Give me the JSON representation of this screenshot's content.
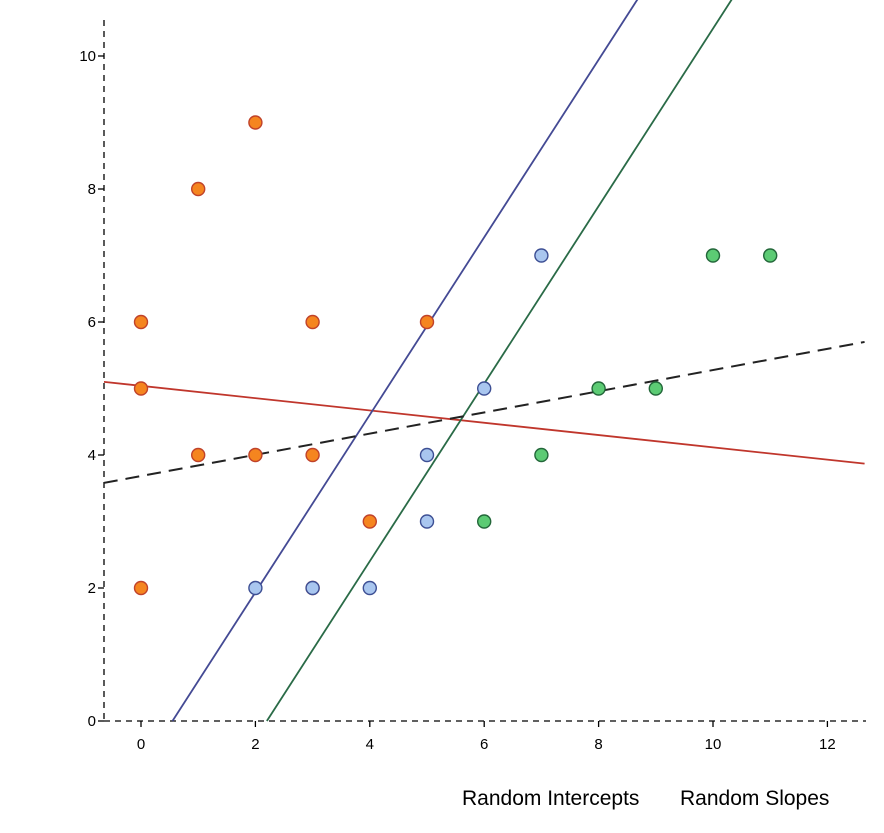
{
  "chart_data": {
    "type": "scatter",
    "title": "",
    "xlabel": "",
    "ylabel": "",
    "xlim": [
      -0.65,
      12.65
    ],
    "ylim": [
      0,
      10.5
    ],
    "x_ticks": [
      0,
      2,
      4,
      6,
      8,
      10,
      12
    ],
    "y_ticks": [
      0,
      2,
      4,
      6,
      8,
      10
    ],
    "grid": false,
    "groups": [
      {
        "color": "#f5851f",
        "stroke": "#c0422a",
        "points": [
          {
            "x": 0,
            "y": 2
          },
          {
            "x": 0,
            "y": 5
          },
          {
            "x": 0,
            "y": 6
          },
          {
            "x": 1,
            "y": 4
          },
          {
            "x": 1,
            "y": 8
          },
          {
            "x": 2,
            "y": 4
          },
          {
            "x": 2,
            "y": 9
          },
          {
            "x": 3,
            "y": 2
          },
          {
            "x": 3,
            "y": 4
          },
          {
            "x": 3,
            "y": 6
          },
          {
            "x": 4,
            "y": 3
          },
          {
            "x": 5,
            "y": 6
          }
        ]
      },
      {
        "color": "#a9c6ef",
        "stroke": "#3d4f94",
        "points": [
          {
            "x": 2,
            "y": 2
          },
          {
            "x": 3,
            "y": 2
          },
          {
            "x": 4,
            "y": 2
          },
          {
            "x": 5,
            "y": 3
          },
          {
            "x": 5,
            "y": 4
          },
          {
            "x": 6,
            "y": 5
          },
          {
            "x": 7,
            "y": 7
          }
        ]
      },
      {
        "color": "#5ccb74",
        "stroke": "#23673a",
        "points": [
          {
            "x": 6,
            "y": 3
          },
          {
            "x": 7,
            "y": 4
          },
          {
            "x": 8,
            "y": 5
          },
          {
            "x": 9,
            "y": 5
          },
          {
            "x": 10,
            "y": 7
          },
          {
            "x": 11,
            "y": 7
          }
        ]
      }
    ],
    "lines": [
      {
        "color": "#c0362c",
        "dashed": false,
        "x1": -0.65,
        "y1": 5.1,
        "x2": 12.65,
        "y2": 3.87
      },
      {
        "color": "#444a94",
        "dashed": false,
        "x1": 0.55,
        "y1": 0,
        "x2": 12.65,
        "y2": 16.15
      },
      {
        "color": "#2a6b47",
        "dashed": false,
        "x1": 2.2,
        "y1": 0,
        "x2": 12.65,
        "y2": 13.95
      },
      {
        "color": "#222222",
        "dashed": true,
        "x1": -0.65,
        "y1": 3.58,
        "x2": 12.65,
        "y2": 5.7
      }
    ],
    "legend": {
      "position": "bottom-right",
      "entries": [
        "Random Intercepts",
        "Random Slopes"
      ]
    }
  }
}
